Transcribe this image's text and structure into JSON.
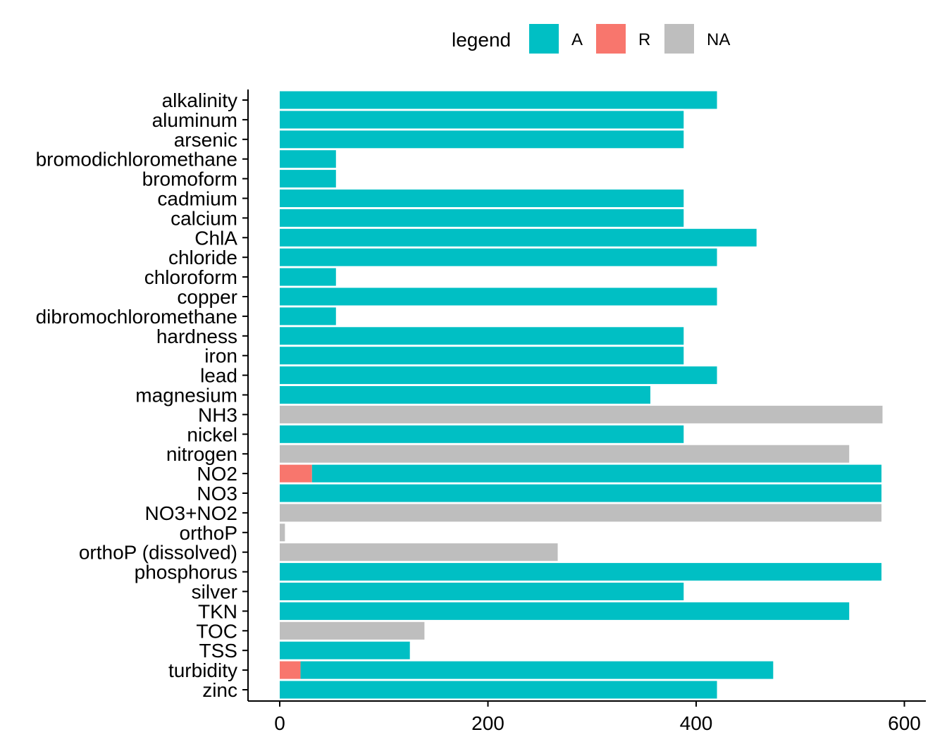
{
  "chart_data": {
    "type": "bar",
    "orientation": "horizontal",
    "stacked": true,
    "legend": {
      "title": "legend",
      "position": "top",
      "entries": [
        {
          "key": "A",
          "label": "A",
          "color": "#00BFC4"
        },
        {
          "key": "R",
          "label": "R",
          "color": "#F8766D"
        },
        {
          "key": "NA",
          "label": "NA",
          "color": "#BEBEBE"
        }
      ]
    },
    "xlim": [
      0,
      600
    ],
    "xticks": [
      0,
      200,
      400,
      600
    ],
    "grid": false,
    "categories": [
      "alkalinity",
      "aluminum",
      "arsenic",
      "bromodichloromethane",
      "bromoform",
      "cadmium",
      "calcium",
      "ChlA",
      "chloride",
      "chloroform",
      "copper",
      "dibromochloromethane",
      "hardness",
      "iron",
      "lead",
      "magnesium",
      "NH3",
      "nickel",
      "nitrogen",
      "NO2",
      "NO3",
      "NO3+NO2",
      "orthoP",
      "orthoP (dissolved)",
      "phosphorus",
      "silver",
      "TKN",
      "TOC",
      "TSS",
      "turbidity",
      "zinc"
    ],
    "series": [
      {
        "name": "R",
        "values": [
          0,
          0,
          0,
          0,
          0,
          0,
          0,
          0,
          0,
          0,
          0,
          0,
          0,
          0,
          0,
          0,
          0,
          0,
          0,
          31,
          0,
          0,
          0,
          0,
          0,
          0,
          0,
          0,
          0,
          20,
          0
        ]
      },
      {
        "name": "A",
        "values": [
          420,
          388,
          388,
          54,
          54,
          388,
          388,
          458,
          420,
          54,
          420,
          54,
          388,
          388,
          420,
          356,
          0,
          388,
          0,
          547,
          578,
          0,
          0,
          0,
          578,
          388,
          547,
          0,
          125,
          454,
          420
        ]
      },
      {
        "name": "NA",
        "values": [
          0,
          0,
          0,
          0,
          0,
          0,
          0,
          0,
          0,
          0,
          0,
          0,
          0,
          0,
          0,
          0,
          579,
          0,
          547,
          0,
          0,
          578,
          5,
          267,
          0,
          0,
          0,
          139,
          0,
          0,
          0
        ]
      }
    ]
  }
}
